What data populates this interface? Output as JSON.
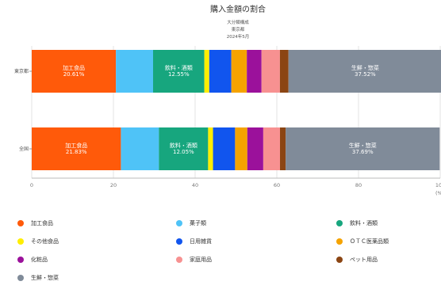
{
  "chart_data": {
    "type": "bar",
    "orientation": "horizontal",
    "stacked": true,
    "title": "購入金額の割合",
    "subtitle_lines": [
      "大分類構成",
      "東京都",
      "2024年5月"
    ],
    "xlabel": "",
    "x_unit_label": "(%",
    "xlim": [
      0,
      100
    ],
    "x_ticks": [
      "0",
      "20",
      "40",
      "60",
      "80",
      "10"
    ],
    "categories": [
      "東京都",
      "全国"
    ],
    "series": [
      {
        "name": "加工食品",
        "color": "#ff5a0a",
        "values": [
          20.61,
          21.83
        ],
        "labels": [
          "20.61%",
          "21.83%"
        ]
      },
      {
        "name": "菓子類",
        "color": "#4fc3f7",
        "values": [
          9.1,
          9.3
        ],
        "labels": [
          "",
          ""
        ]
      },
      {
        "name": "飲料・酒類",
        "color": "#17a67e",
        "values": [
          12.55,
          12.05
        ],
        "labels": [
          "12.55%",
          "12.05%"
        ]
      },
      {
        "name": "その他食品",
        "color": "#ffee00",
        "values": [
          1.2,
          1.2
        ],
        "labels": [
          "",
          ""
        ]
      },
      {
        "name": "日用雑貨",
        "color": "#1155ee",
        "values": [
          5.4,
          5.4
        ],
        "labels": [
          "",
          ""
        ]
      },
      {
        "name": "ＯＴＣ医薬品類",
        "color": "#f5a300",
        "values": [
          3.8,
          3.0
        ],
        "labels": [
          "",
          ""
        ]
      },
      {
        "name": "化粧品",
        "color": "#9b119b",
        "values": [
          3.6,
          3.9
        ],
        "labels": [
          "",
          ""
        ]
      },
      {
        "name": "家庭用品",
        "color": "#f79191",
        "values": [
          4.5,
          4.1
        ],
        "labels": [
          "",
          ""
        ]
      },
      {
        "name": "ペット用品",
        "color": "#8b4513",
        "values": [
          2.1,
          1.4
        ],
        "labels": [
          "",
          ""
        ]
      },
      {
        "name": "生鮮・惣菜",
        "color": "#808b99",
        "values": [
          37.52,
          37.69
        ],
        "labels": [
          "37.52%",
          "37.69%"
        ]
      }
    ],
    "segment_label_series_suffix": true,
    "grid": true,
    "legend_position": "bottom"
  }
}
